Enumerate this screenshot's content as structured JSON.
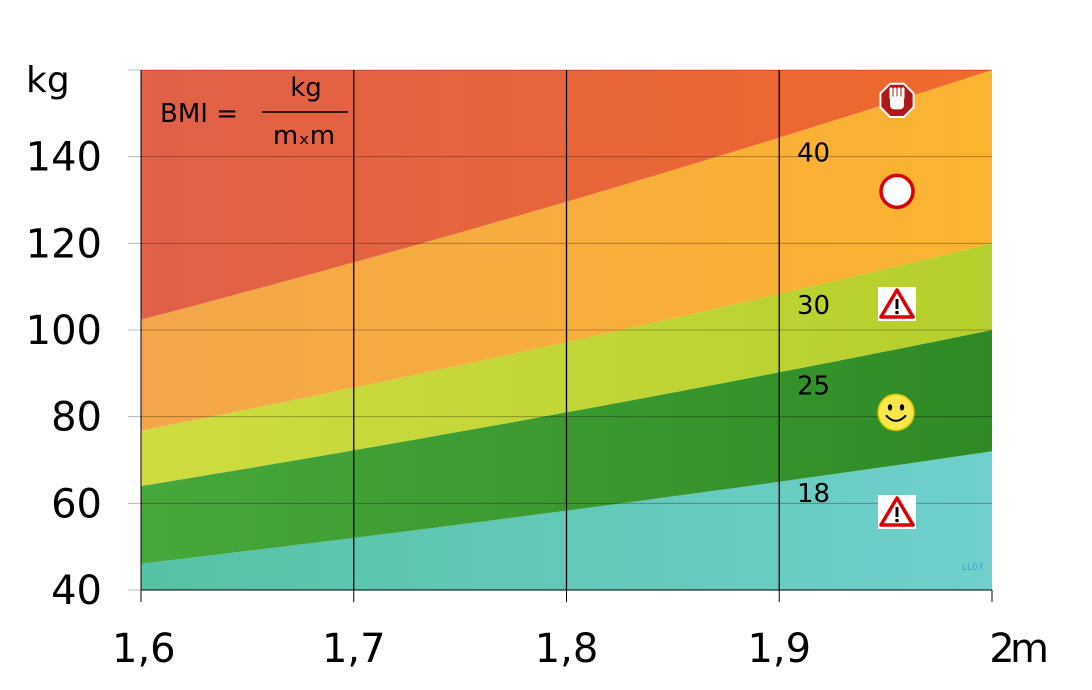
{
  "chart_data": {
    "type": "area",
    "title": "",
    "formula": {
      "lhs": "BMI =",
      "numerator": "kg",
      "denominator": "mₓm"
    },
    "xlabel": "m",
    "ylabel": "kg",
    "xlim": [
      1.6,
      2.0
    ],
    "ylim": [
      40,
      160
    ],
    "x_ticks": [
      "1,6",
      "1,7",
      "1,8",
      "1,9",
      "2"
    ],
    "y_ticks": [
      "40",
      "60",
      "80",
      "100",
      "120",
      "140"
    ],
    "x_tick_values": [
      1.6,
      1.7,
      1.8,
      1.9,
      2.0
    ],
    "y_tick_values": [
      40,
      60,
      80,
      100,
      120,
      140
    ],
    "grid": {
      "vertical": [
        1.7,
        1.8,
        1.9
      ],
      "horizontal": true
    },
    "bmi_thresholds": [
      18,
      25,
      30,
      40
    ],
    "band_labels": [
      "18",
      "25",
      "30",
      "40"
    ],
    "bands": [
      {
        "from": 0,
        "to": 18,
        "colors": [
          "#56c2a4",
          "#6fd0cc"
        ]
      },
      {
        "from": 18,
        "to": 25,
        "colors": [
          "#46a83a",
          "#2f8a26"
        ]
      },
      {
        "from": 25,
        "to": 30,
        "colors": [
          "#cfdc40",
          "#b5cf2c"
        ]
      },
      {
        "from": 30,
        "to": 40,
        "colors": [
          "#f4a64a",
          "#fbb430"
        ]
      },
      {
        "from": 40,
        "to": 200,
        "colors": [
          "#e06048",
          "#ef6a2c"
        ]
      }
    ],
    "icons": [
      {
        "name": "stop-hand-icon",
        "kg": 153
      },
      {
        "name": "circle-sign-icon",
        "kg": 132
      },
      {
        "name": "warning-icon",
        "kg": 106
      },
      {
        "name": "smiley-icon",
        "kg": 81
      },
      {
        "name": "warning-icon",
        "kg": 58
      }
    ],
    "watermark": "LL07"
  }
}
